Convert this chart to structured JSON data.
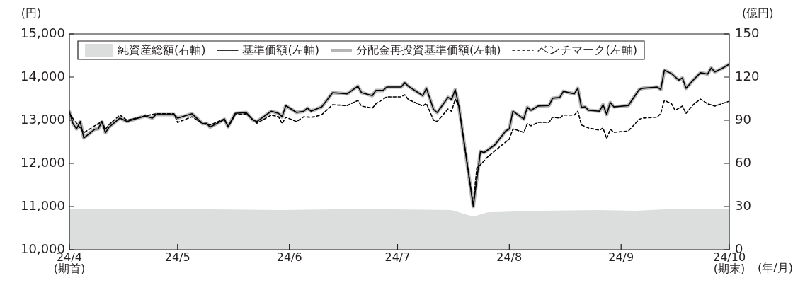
{
  "chart_data": {
    "type": "line",
    "xlabel": "(年/月)",
    "ylabel": "(円)",
    "y2label": "(億円)",
    "legend": "top left",
    "grid": false,
    "marker": "none",
    "xlim": [
      "--04-01",
      "--10-01"
    ],
    "xticks": [
      {
        "value": "--04-01",
        "label": "24/4\n(期首)"
      },
      {
        "value": "--05-01",
        "label": "24/5"
      },
      {
        "value": "--06-01",
        "label": "24/6"
      },
      {
        "value": "--07-01",
        "label": "24/7"
      },
      {
        "value": "--08-01",
        "label": "24/8"
      },
      {
        "value": "--09-01",
        "label": "24/9"
      },
      {
        "value": "--10-01",
        "label": "24/10\n(期末)"
      }
    ],
    "ylim": [
      10000,
      15000
    ],
    "yticks": [
      {
        "value": 10000,
        "label": "10,000"
      },
      {
        "value": 11000,
        "label": "11,000"
      },
      {
        "value": 12000,
        "label": "12,000"
      },
      {
        "value": 13000,
        "label": "13,000"
      },
      {
        "value": 14000,
        "label": "14,000"
      },
      {
        "value": 15000,
        "label": "15,000"
      }
    ],
    "y2lim": [
      0,
      150
    ],
    "y2ticks": [
      0,
      30,
      60,
      90,
      120,
      150
    ],
    "x": [
      "--04-01",
      "--04-02",
      "--04-03",
      "--04-04",
      "--04-05",
      "--04-08",
      "--04-09",
      "--04-10",
      "--04-11",
      "--04-12",
      "--04-15",
      "--04-17",
      "--04-22",
      "--04-24",
      "--04-25",
      "--04-30",
      "--05-01",
      "--05-05",
      "--05-08",
      "--05-09",
      "--05-10",
      "--05-14",
      "--05-15",
      "--05-17",
      "--05-20",
      "--05-22",
      "--05-23",
      "--05-27",
      "--05-29",
      "--05-30",
      "--05-31",
      "--06-03",
      "--06-05",
      "--06-06",
      "--06-07",
      "--06-10",
      "--06-13",
      "--06-17",
      "--06-20",
      "--06-21",
      "--06-24",
      "--06-25",
      "--06-27",
      "--06-28",
      "--07-02",
      "--07-03",
      "--07-04",
      "--07-08",
      "--07-09",
      "--07-11",
      "--07-12",
      "--07-15",
      "--07-16",
      "--07-17",
      "--07-18",
      "--07-22",
      "--07-24",
      "--07-25",
      "--07-28",
      "--07-31",
      "--08-01",
      "--08-02",
      "--08-05",
      "--08-06",
      "--08-07",
      "--08-09",
      "--08-12",
      "--08-13",
      "--08-15",
      "--08-16",
      "--08-19",
      "--08-20",
      "--08-21",
      "--08-22",
      "--08-23",
      "--08-26",
      "--08-27",
      "--08-28",
      "--08-29",
      "--08-30",
      "--09-03",
      "--09-06",
      "--09-07",
      "--09-11",
      "--09-12",
      "--09-13",
      "--09-15",
      "--09-17",
      "--09-18",
      "--09-19",
      "--09-21",
      "--09-23",
      "--09-25",
      "--09-26",
      "--09-27",
      "--09-29",
      "--10-01"
    ],
    "series": [
      {
        "name": "純資産総額(右軸)",
        "type": "area",
        "axis": "y2",
        "color": "#dcdddd",
        "x": [
          "--04-01",
          "--04-20",
          "--05-10",
          "--05-30",
          "--06-13",
          "--06-30",
          "--07-16",
          "--07-22",
          "--07-26",
          "--08-09",
          "--08-26",
          "--09-05",
          "--09-13",
          "--10-01"
        ],
        "values": [
          28,
          28.5,
          28,
          27.5,
          28,
          28,
          27.5,
          23,
          26,
          27,
          27.5,
          27,
          28,
          28.5
        ]
      },
      {
        "name": "基準価額(左軸)",
        "color": "#000000",
        "values": [
          13200,
          12920,
          12800,
          12970,
          12590,
          12790,
          12800,
          12970,
          12710,
          12840,
          13050,
          12970,
          13100,
          13050,
          13130,
          13130,
          13050,
          13150,
          12920,
          12930,
          12840,
          13020,
          12850,
          13160,
          13180,
          13000,
          12970,
          13210,
          13160,
          13080,
          13340,
          13180,
          13210,
          13280,
          13210,
          13310,
          13640,
          13610,
          13790,
          13640,
          13570,
          13690,
          13690,
          13770,
          13770,
          13870,
          13790,
          13570,
          13740,
          13250,
          13180,
          13530,
          13480,
          13710,
          13330,
          11000,
          12280,
          12250,
          12430,
          12750,
          12800,
          13210,
          13030,
          13300,
          13230,
          13330,
          13340,
          13510,
          13530,
          13670,
          13610,
          13740,
          13300,
          13310,
          13230,
          13210,
          13360,
          13130,
          13410,
          13310,
          13340,
          13710,
          13740,
          13770,
          13710,
          14160,
          14080,
          13930,
          13980,
          13740,
          13930,
          14100,
          14070,
          14210,
          14120,
          14200,
          14300
        ]
      },
      {
        "name": "分配金再投資基準価額(左軸)",
        "color": "#b5b5b6",
        "values": [
          13200,
          12920,
          12800,
          12970,
          12590,
          12790,
          12800,
          12970,
          12710,
          12840,
          13050,
          12970,
          13100,
          13050,
          13130,
          13130,
          13050,
          13150,
          12920,
          12930,
          12840,
          13020,
          12850,
          13160,
          13180,
          13000,
          12970,
          13210,
          13160,
          13080,
          13340,
          13180,
          13210,
          13280,
          13210,
          13310,
          13640,
          13610,
          13790,
          13640,
          13570,
          13690,
          13690,
          13770,
          13770,
          13870,
          13790,
          13570,
          13740,
          13250,
          13180,
          13530,
          13480,
          13710,
          13330,
          11000,
          12280,
          12250,
          12430,
          12750,
          12800,
          13210,
          13030,
          13300,
          13230,
          13330,
          13340,
          13510,
          13530,
          13670,
          13610,
          13740,
          13300,
          13310,
          13230,
          13210,
          13360,
          13130,
          13410,
          13310,
          13340,
          13710,
          13740,
          13770,
          13710,
          14160,
          14080,
          13930,
          13980,
          13740,
          13930,
          14100,
          14070,
          14210,
          14120,
          14200,
          14300
        ]
      },
      {
        "name": "ベンチマーク(左軸)",
        "color": "#000000",
        "line_style": "dashed",
        "x": [
          "--04-01",
          "--04-05",
          "--04-08",
          "--04-10",
          "--04-11",
          "--04-12",
          "--04-15",
          "--04-17",
          "--04-22",
          "--04-25",
          "--04-30",
          "--05-01",
          "--05-05",
          "--05-08",
          "--05-10",
          "--05-14",
          "--05-15",
          "--05-17",
          "--05-20",
          "--05-23",
          "--05-27",
          "--05-29",
          "--05-30",
          "--05-31",
          "--06-03",
          "--06-05",
          "--06-07",
          "--06-08",
          "--06-10",
          "--06-13",
          "--06-17",
          "--06-20",
          "--06-21",
          "--06-24",
          "--06-25",
          "--06-28",
          "--07-02",
          "--07-03",
          "--07-04",
          "--07-08",
          "--07-09",
          "--07-11",
          "--07-12",
          "--07-15",
          "--07-16",
          "--07-17",
          "--07-18",
          "--07-22",
          "--07-23",
          "--07-24",
          "--07-26",
          "--07-30",
          "--08-01",
          "--08-02",
          "--08-05",
          "--08-06",
          "--08-07",
          "--08-09",
          "--08-12",
          "--08-13",
          "--08-15",
          "--08-16",
          "--08-19",
          "--08-20",
          "--08-21",
          "--08-23",
          "--08-26",
          "--08-27",
          "--08-28",
          "--08-29",
          "--08-30",
          "--09-03",
          "--09-06",
          "--09-07",
          "--09-11",
          "--09-12",
          "--09-13",
          "--09-15",
          "--09-16",
          "--09-18",
          "--09-19",
          "--09-21",
          "--09-23",
          "--09-25",
          "--09-27",
          "--10-01"
        ],
        "values": [
          13150,
          12710,
          12870,
          12970,
          12790,
          12900,
          13120,
          13000,
          13100,
          13150,
          13150,
          12950,
          13080,
          12920,
          12890,
          13030,
          12840,
          13130,
          13150,
          12930,
          13120,
          13080,
          12920,
          13070,
          12970,
          13080,
          13070,
          13080,
          13130,
          13360,
          13340,
          13460,
          13330,
          13280,
          13380,
          13540,
          13540,
          13590,
          13480,
          13330,
          13390,
          13000,
          12970,
          13260,
          13210,
          13490,
          13330,
          11030,
          11900,
          11970,
          12150,
          12430,
          12560,
          12800,
          12720,
          12920,
          12870,
          12950,
          12950,
          13070,
          13050,
          13120,
          13120,
          13210,
          12890,
          12820,
          12770,
          12820,
          12570,
          12790,
          12720,
          12750,
          13020,
          13050,
          13070,
          13160,
          13460,
          13380,
          13230,
          13330,
          13160,
          13360,
          13490,
          13380,
          13330,
          13440
        ]
      }
    ]
  }
}
